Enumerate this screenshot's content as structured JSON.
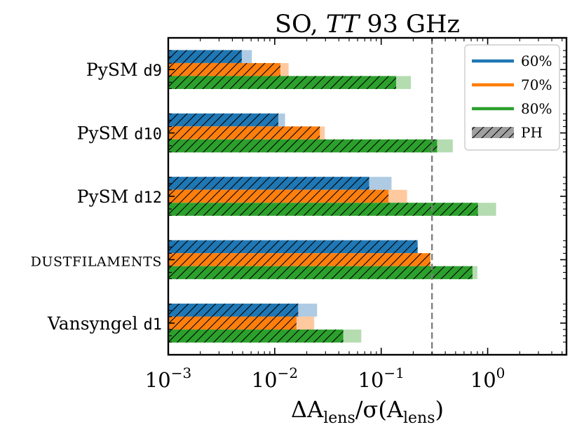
{
  "chart_data": {
    "type": "bar",
    "orientation": "horizontal",
    "title": {
      "prefix": "SO, ",
      "italic": "TT",
      "suffix": " 93 GHz"
    },
    "xlabel": {
      "delta": "ΔA",
      "sub1": "lens",
      "middle": "/σ(A",
      "sub2": "lens",
      "close": ")"
    },
    "xscale": "log",
    "xlim": [
      0.001,
      5.5
    ],
    "xticks": [
      {
        "value": 0.001,
        "base": "10",
        "exp": "−3"
      },
      {
        "value": 0.01,
        "base": "10",
        "exp": "−2"
      },
      {
        "value": 0.1,
        "base": "10",
        "exp": "−1"
      },
      {
        "value": 1,
        "base": "10",
        "exp": "0"
      }
    ],
    "categories": [
      {
        "prefix": "PySM ",
        "code": "d9",
        "smallcaps": false
      },
      {
        "prefix": "PySM ",
        "code": "d10",
        "smallcaps": false
      },
      {
        "prefix": "PySM ",
        "code": "d12",
        "smallcaps": false
      },
      {
        "prefix": "DUSTFILAMENTS",
        "code": "",
        "smallcaps": true
      },
      {
        "prefix": "Vansyngel ",
        "code": "d1",
        "smallcaps": false
      }
    ],
    "series": [
      {
        "name": "60%",
        "color": "#1f77b4",
        "light": "#aecbe3",
        "values": [
          0.0061,
          0.0125,
          0.125,
          0.21,
          0.025
        ],
        "ph_values": [
          0.0049,
          0.0108,
          0.077,
          0.22,
          0.0166
        ]
      },
      {
        "name": "70%",
        "color": "#ff7f0e",
        "light": "#ffc99f",
        "values": [
          0.0135,
          0.0295,
          0.175,
          0.28,
          0.0235
        ],
        "ph_values": [
          0.0113,
          0.0265,
          0.117,
          0.29,
          0.016
        ]
      },
      {
        "name": "80%",
        "color": "#2ca02c",
        "light": "#b4dcb0",
        "values": [
          0.19,
          0.47,
          1.2,
          0.8,
          0.065
        ],
        "ph_values": [
          0.138,
          0.335,
          0.81,
          0.72,
          0.044
        ]
      }
    ],
    "threshold": 0.3,
    "legend": {
      "position": "top-right",
      "entries": [
        {
          "label": "60%",
          "color": "#1f77b4",
          "kind": "line"
        },
        {
          "label": "70%",
          "color": "#ff7f0e",
          "kind": "line"
        },
        {
          "label": "80%",
          "color": "#2ca02c",
          "kind": "line"
        },
        {
          "label": "PH",
          "color": "#a0a0a0",
          "kind": "hatch"
        }
      ]
    }
  }
}
